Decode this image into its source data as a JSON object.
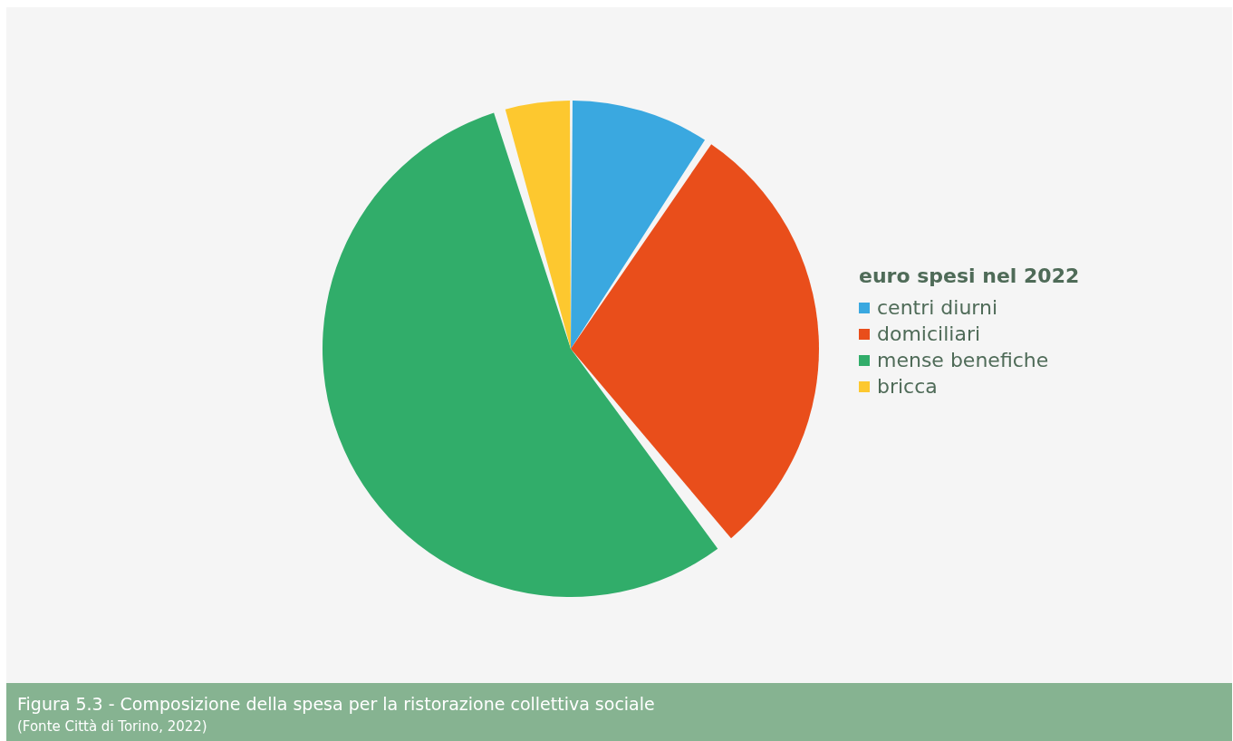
{
  "chart_data": {
    "type": "pie",
    "title": "Figura 5.3 - Composizione della spesa per la ristorazione collettiva sociale",
    "annotations": [
      "(Fonte Città di Torino, 2022)"
    ],
    "legend_title": "euro spesi nel 2022",
    "legend": "right",
    "categories": [
      "centri diurni",
      "domiciliari",
      "mense benefiche",
      "bricca"
    ],
    "values": [
      9.2,
      30,
      56.5,
      4.3
    ],
    "colors": [
      "#3aa8e0",
      "#e94e1b",
      "#31ad6a",
      "#fdc82f"
    ]
  }
}
